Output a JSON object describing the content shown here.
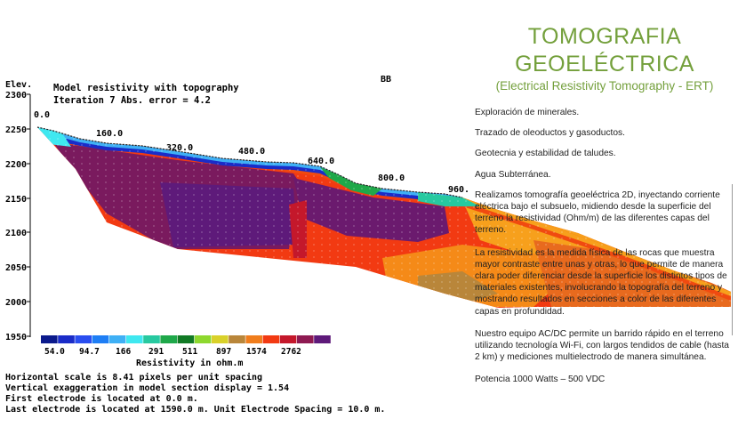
{
  "plot": {
    "elev_label": "Elev.",
    "heading_line1": "Model resistivity with topography",
    "heading_line2": "Iteration 7 Abs. error = 4.2",
    "section_tag": "BB",
    "elevation_ticks": [
      "2300",
      "2250",
      "2200",
      "2150",
      "2100",
      "2050",
      "2000",
      "1950"
    ],
    "distance_labels": [
      "0.0",
      "160.0",
      "320.0",
      "480.0",
      "640.0",
      "800.0",
      "960."
    ],
    "legend": {
      "colors": [
        "#0b1a8c",
        "#1a2cc8",
        "#2a4ef0",
        "#1e7ef5",
        "#3fb0f5",
        "#3fe8f0",
        "#27c9a0",
        "#1fa84a",
        "#117a25",
        "#8ed82e",
        "#d9d12a",
        "#b9863a",
        "#f07d1c",
        "#f23a12",
        "#c4182b",
        "#8e1a52",
        "#5e1a7a"
      ],
      "labels": [
        "54.0",
        "94.7",
        "166",
        "291",
        "511",
        "897",
        "1574",
        "2762"
      ],
      "caption": "Resistivity in ohm.m"
    },
    "footer": [
      "Horizontal scale is 8.41 pixels per unit spacing",
      "Vertical exaggeration in model section display = 1.54",
      "First electrode is located at   0.0  m.",
      "Last electrode is located at 1590.0 m.    Unit Electrode Spacing = 10.0 m."
    ]
  },
  "title": {
    "line1": "TOMOGRAFIA",
    "line2": "GEOELÉCTRICA",
    "subtitle": "(Electrical Resistivity Tomography - ERT)"
  },
  "text_panel": {
    "items": [
      "Exploración de minerales.",
      "Trazado de oleoductos y gasoductos.",
      "Geotecnia y estabilidad de taludes.",
      "Agua Subterránea."
    ],
    "paragraph1": "Realizamos tomografía geoeléctrica  2D, inyectando corriente eléctrica bajo el subsuelo, midiendo desde la superficie del terreno la resistividad  (Ohm/m) de las diferentes capas del terreno.",
    "paragraph2": "La resistividad es la medida física de las rocas que muestra  mayor contraste entre unas y otras, lo que permite de manera clara poder diferenciar  desde la superficie los distintos tipos de materiales existentes, involucrando la topografía del terreno y mostrando resultados en secciones a color de las diferentes capas en profundidad.",
    "paragraph3": "Nuestro equipo AC/DC permite un barrido rápido en el terreno utilizando tecnología Wi-Fi, con largos tendidos de cable (hasta 2 km) y mediciones multielectrodo de manera simultánea.",
    "power": "Potencia 1000 Watts – 500 VDC"
  }
}
